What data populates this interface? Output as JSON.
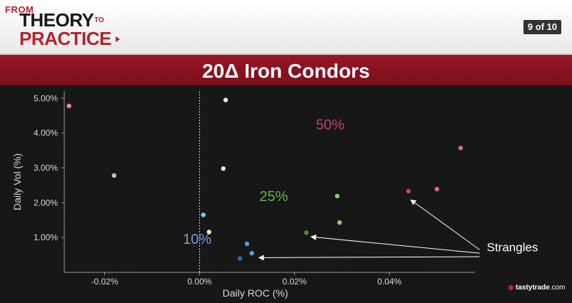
{
  "header": {
    "logo": {
      "from": "FROM",
      "theory": "THEORY",
      "to": "TO",
      "practice": "PRACTICE"
    },
    "page_counter": "9 of 10"
  },
  "title": "20Δ Iron Condors",
  "footer": {
    "brand": "tastytrade",
    "suffix": ".com"
  },
  "colors": {
    "title_band": "#8a1220",
    "s10": "#6f9fe0",
    "s25": "#6ab04c",
    "s50": "#c0407f",
    "grid_axis": "#9a9a9a"
  },
  "chart_data": {
    "type": "scatter",
    "xlabel": "Daily ROC (%)",
    "ylabel": "Daily Vol (%)",
    "xlim": [
      -0.0285,
      0.058
    ],
    "ylim": [
      0.0,
      5.2
    ],
    "x_ticks": [
      -0.02,
      0.0,
      0.02,
      0.04
    ],
    "x_tick_labels": [
      "-0.02%",
      "0.00%",
      "0.02%",
      "0.04%"
    ],
    "y_ticks": [
      1,
      2,
      3,
      4,
      5
    ],
    "y_tick_labels": [
      "1.00%",
      "2.00%",
      "3.00%",
      "4.00%",
      "5.00%"
    ],
    "zero_line_x": 0.0,
    "series": [
      {
        "color": "#f08a8a",
        "points": [
          [
            -0.0275,
            4.78
          ]
        ]
      },
      {
        "color": "#a8d8a0",
        "points": [
          [
            -0.018,
            2.78
          ]
        ]
      },
      {
        "color": "#f2e6cf",
        "points": [
          [
            0.0055,
            4.95
          ],
          [
            0.005,
            2.98
          ],
          [
            0.002,
            1.16
          ]
        ]
      },
      {
        "color": "#8cc0e6",
        "points": [
          [
            0.0008,
            1.65
          ]
        ]
      },
      {
        "color": "#5b9ad6",
        "points": [
          [
            0.01,
            0.82
          ],
          [
            0.011,
            0.55
          ]
        ]
      },
      {
        "color": "#2b6cb0",
        "points": [
          [
            0.0085,
            0.4
          ]
        ]
      },
      {
        "color": "#4d8a3a",
        "points": [
          [
            0.0225,
            1.14
          ]
        ]
      },
      {
        "color": "#8fce7c",
        "points": [
          [
            0.029,
            2.19
          ],
          [
            0.0295,
            1.43
          ]
        ]
      },
      {
        "color": "#c0408f",
        "points": [
          [
            0.044,
            2.33
          ]
        ]
      },
      {
        "color": "#e060a8",
        "points": [
          [
            0.05,
            2.39
          ],
          [
            0.055,
            3.57
          ]
        ]
      }
    ],
    "annotations": [
      {
        "label": "50%",
        "x": 0.0245,
        "y": 4.1,
        "color": "#c0407f",
        "size": 20
      },
      {
        "label": "25%",
        "x": 0.0126,
        "y": 2.05,
        "color": "#6ab04c",
        "size": 20
      },
      {
        "label": "10%",
        "x": -0.0035,
        "y": 0.82,
        "color": "#6f9fe0",
        "size": 20
      },
      {
        "label": "Strangles",
        "x": 0.0605,
        "y": 0.6,
        "color": "#ffffff",
        "size": 17
      }
    ],
    "arrows": [
      {
        "from": [
          0.059,
          0.65
        ],
        "to": [
          0.0445,
          2.08
        ]
      },
      {
        "from": [
          0.059,
          0.55
        ],
        "to": [
          0.0235,
          1.02
        ]
      },
      {
        "from": [
          0.059,
          0.45
        ],
        "to": [
          0.0125,
          0.42
        ]
      }
    ]
  }
}
